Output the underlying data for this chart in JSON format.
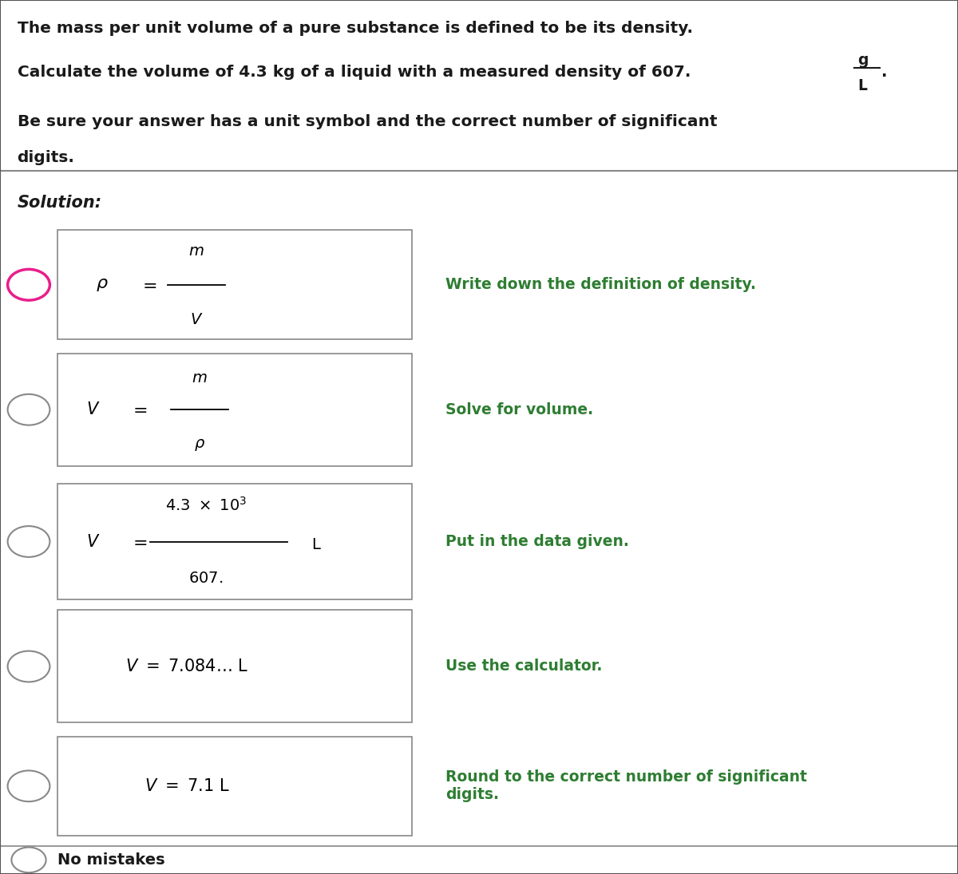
{
  "bg_top": "#d3d3d3",
  "bg_bottom": "#ffffff",
  "text_color_dark": "#1a1a1a",
  "text_color_green": "#2e7d32",
  "text_color_pink": "#e91e8c",
  "header_line1": "The mass per unit volume of a pure substance is defined to be its density.",
  "header_line2": "Calculate the volume of 4.3 kg of a liquid with a measured density of 607.",
  "header_line3": "Be sure your answer has a unit symbol and the correct number of significant",
  "header_line4": "digits.",
  "solution_label": "Solution:",
  "rows": [
    {
      "formula": "rho_eq",
      "description": "Write down the definition of density.",
      "selected": true
    },
    {
      "formula": "v_eq_m_over_p",
      "description": "Solve for volume.",
      "selected": false
    },
    {
      "formula": "v_eq_data",
      "description": "Put in the data given.",
      "selected": false
    },
    {
      "formula": "v_eq_calc",
      "description": "Use the calculator.",
      "selected": false
    },
    {
      "formula": "v_eq_round",
      "description": "Round to the correct number of significant\ndigits.",
      "selected": false
    }
  ],
  "no_mistakes_label": "No mistakes",
  "figure_width": 12.0,
  "figure_height": 10.95
}
